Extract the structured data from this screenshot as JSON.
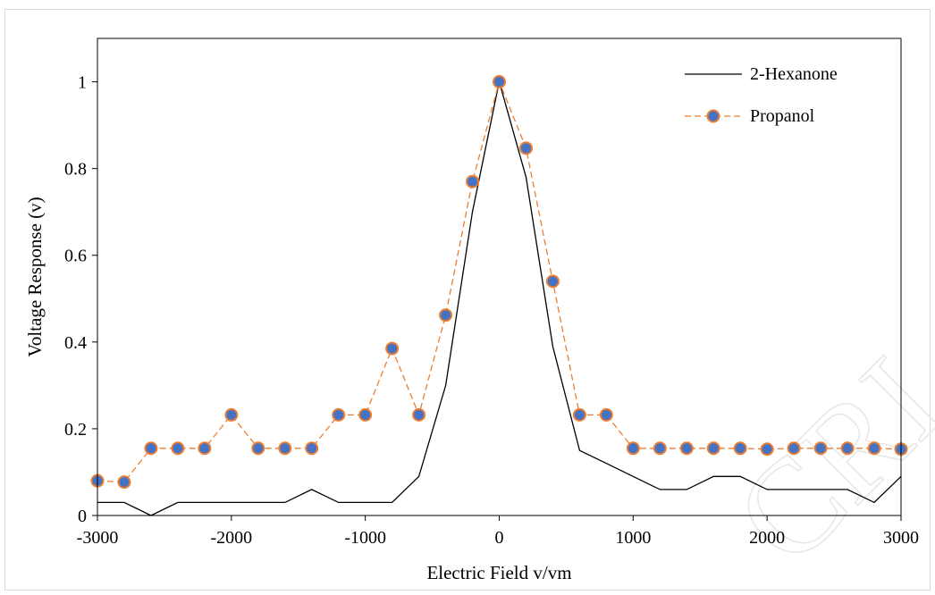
{
  "chart_data": {
    "type": "line",
    "title": "",
    "xlabel": "Electric Field v/vm",
    "ylabel": "Voltage Response (v)",
    "xlim": [
      -3000,
      3000
    ],
    "ylim": [
      0,
      1.1
    ],
    "x_ticks": [
      "-3000",
      "-2000",
      "-1000",
      "0",
      "1000",
      "2000",
      "3000"
    ],
    "y_ticks": [
      "0",
      "0.2",
      "0.4",
      "0.6",
      "0.8",
      "1"
    ],
    "grid": false,
    "legend_position": "top-right",
    "x": [
      -3000,
      -2800,
      -2600,
      -2400,
      -2200,
      -2000,
      -1800,
      -1600,
      -1400,
      -1200,
      -1000,
      -800,
      -600,
      -400,
      -200,
      0,
      200,
      400,
      600,
      800,
      1000,
      1200,
      1400,
      1600,
      1800,
      2000,
      2200,
      2400,
      2600,
      2800,
      3000
    ],
    "series": [
      {
        "name": "2-Hexanone",
        "color": "#000000",
        "style": "solid",
        "values": [
          0.03,
          0.03,
          0.0,
          0.03,
          0.03,
          0.03,
          0.03,
          0.03,
          0.06,
          0.03,
          0.03,
          0.03,
          0.09,
          0.3,
          0.7,
          1.0,
          0.78,
          0.39,
          0.15,
          0.12,
          0.09,
          0.06,
          0.06,
          0.09,
          0.09,
          0.06,
          0.06,
          0.06,
          0.06,
          0.03,
          0.09
        ]
      },
      {
        "name": "Propanol",
        "color": "#ed7d31",
        "marker_color": "#4472c4",
        "style": "dashed",
        "values": [
          0.08,
          0.077,
          0.155,
          0.155,
          0.155,
          0.232,
          0.155,
          0.155,
          0.155,
          0.232,
          0.232,
          0.385,
          0.232,
          0.462,
          0.77,
          1.0,
          0.847,
          0.54,
          0.232,
          0.232,
          0.155,
          0.155,
          0.155,
          0.155,
          0.155,
          0.153,
          0.155,
          0.155,
          0.155,
          0.155,
          0.153
        ]
      }
    ]
  },
  "watermark": "CRI"
}
